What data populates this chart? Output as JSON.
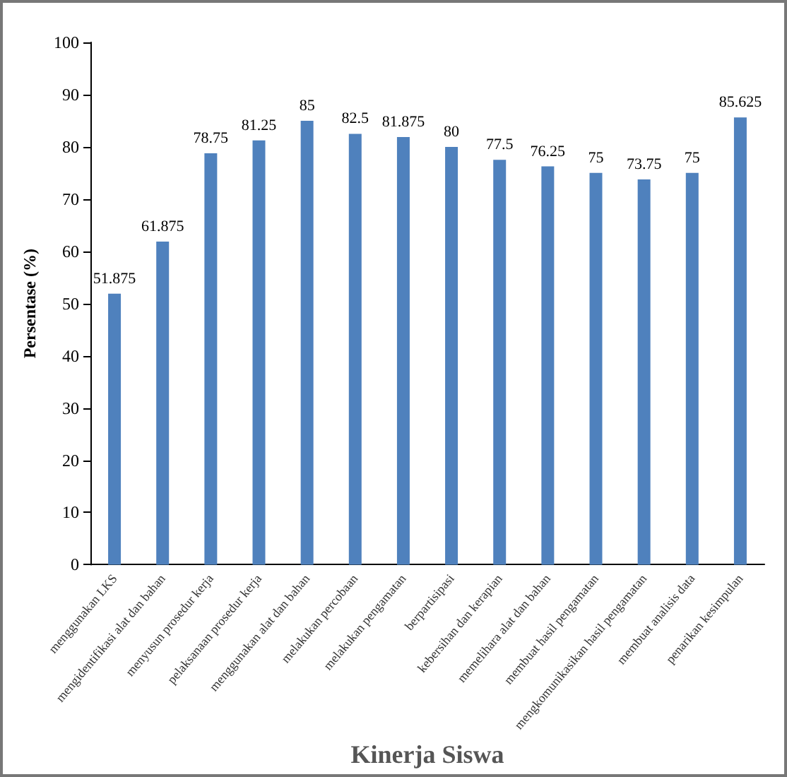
{
  "chart_data": {
    "type": "bar",
    "xlabel": "Kinerja Siswa",
    "ylabel": "Persentase (%)",
    "categories": [
      "menggunakan LKS",
      "mengidentifikasi alat dan bahan",
      "menyusun prosedur kerja",
      "pelaksanaan prosedur kerja",
      "menggunakan alat dan bahan",
      "melakukan percobaan",
      "melakukan pengamatan",
      "berpartisipasi",
      "kebersihan dan kerapian",
      "memelihara alat dan bahan",
      "membuat hasil pengamatan",
      "mengkomunikasikan hasil pengamatan",
      "membuat analisis data",
      "penarikan kesimpulan"
    ],
    "values": [
      51.875,
      61.875,
      78.75,
      81.25,
      85,
      82.5,
      81.875,
      80,
      77.5,
      76.25,
      75,
      73.75,
      75,
      85.625
    ],
    "color": "#4f81bd",
    "ylim": [
      0,
      100
    ],
    "yticks": [
      0,
      10,
      20,
      30,
      40,
      50,
      60,
      70,
      80,
      90,
      100
    ],
    "grid": false,
    "data_labels": true
  }
}
